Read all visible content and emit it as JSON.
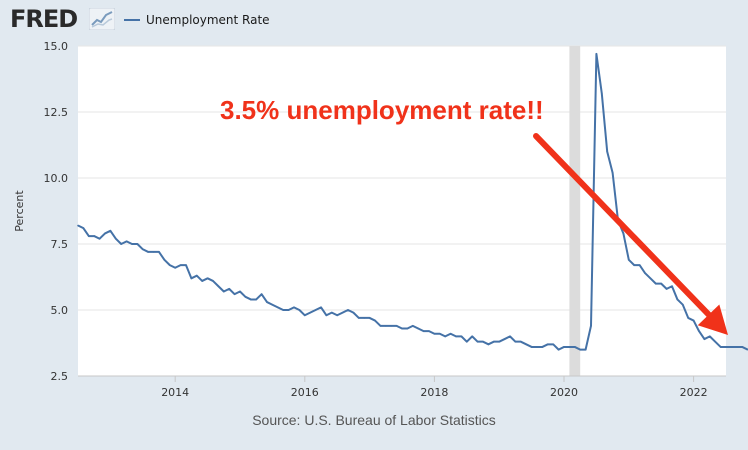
{
  "header": {
    "logo_text": "FRED",
    "legend_label": "Unemployment Rate"
  },
  "source": "Source: U.S. Bureau of Labor Statistics",
  "annotation": "3.5% unemployment rate!!",
  "colors": {
    "series": "#4572a7",
    "annotation": "#f0321a",
    "background": "#e1e9f0",
    "plot_background": "#ffffff",
    "recession_band": "#dcdcdc"
  },
  "chart_data": {
    "type": "line",
    "ylabel": "Percent",
    "xlabel": "",
    "ylim": [
      2.5,
      15.0
    ],
    "yticks": [
      "2.5",
      "5.0",
      "7.5",
      "10.0",
      "12.5",
      "15.0"
    ],
    "xlim": [
      "2012-07",
      "2022-07"
    ],
    "xticks": [
      "2014",
      "2016",
      "2018",
      "2020",
      "2022"
    ],
    "grid": "horizontal",
    "recession": {
      "start": "2020-02",
      "end": "2020-04"
    },
    "series": [
      {
        "name": "Unemployment Rate",
        "start": "2012-07",
        "frequency": "monthly",
        "values": [
          8.2,
          8.1,
          7.8,
          7.8,
          7.7,
          7.9,
          8.0,
          7.7,
          7.5,
          7.6,
          7.5,
          7.5,
          7.3,
          7.2,
          7.2,
          7.2,
          6.9,
          6.7,
          6.6,
          6.7,
          6.7,
          6.2,
          6.3,
          6.1,
          6.2,
          6.1,
          5.9,
          5.7,
          5.8,
          5.6,
          5.7,
          5.5,
          5.4,
          5.4,
          5.6,
          5.3,
          5.2,
          5.1,
          5.0,
          5.0,
          5.1,
          5.0,
          4.8,
          4.9,
          5.0,
          5.1,
          4.8,
          4.9,
          4.8,
          4.9,
          5.0,
          4.9,
          4.7,
          4.7,
          4.7,
          4.6,
          4.4,
          4.4,
          4.4,
          4.4,
          4.3,
          4.3,
          4.4,
          4.3,
          4.2,
          4.2,
          4.1,
          4.1,
          4.0,
          4.1,
          4.0,
          4.0,
          3.8,
          4.0,
          3.8,
          3.8,
          3.7,
          3.8,
          3.8,
          3.9,
          4.0,
          3.8,
          3.8,
          3.7,
          3.6,
          3.6,
          3.6,
          3.7,
          3.7,
          3.5,
          3.6,
          3.6,
          3.6,
          3.5,
          3.5,
          4.4,
          14.7,
          13.2,
          11.0,
          10.2,
          8.4,
          7.9,
          6.9,
          6.7,
          6.7,
          6.4,
          6.2,
          6.0,
          6.0,
          5.8,
          5.9,
          5.4,
          5.2,
          4.7,
          4.6,
          4.2,
          3.9,
          4.0,
          3.8,
          3.6,
          3.6,
          3.6,
          3.6,
          3.6,
          3.5
        ]
      }
    ]
  }
}
